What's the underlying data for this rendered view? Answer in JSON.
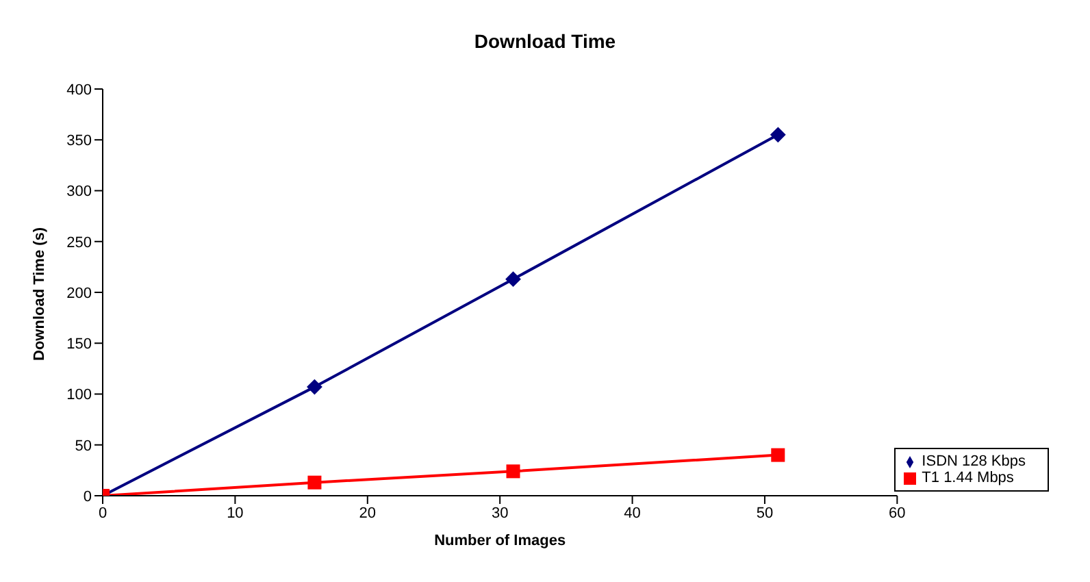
{
  "chart_data": {
    "type": "line",
    "title": "Download Time",
    "xlabel": "Number of Images",
    "ylabel": "Download Time (s)",
    "x": [
      0,
      16,
      31,
      51
    ],
    "series": [
      {
        "name": "ISDN 128 Kbps",
        "color": "#000080",
        "values": [
          0,
          107,
          213,
          355
        ],
        "marker": "diamond"
      },
      {
        "name": "T1 1.44 Mbps",
        "color": "#ff0000",
        "values": [
          0,
          13,
          24,
          40
        ],
        "marker": "square"
      }
    ],
    "xlim": [
      0,
      60
    ],
    "xticks": [
      0,
      10,
      20,
      30,
      40,
      50,
      60
    ],
    "ylim": [
      0,
      400
    ],
    "yticks": [
      0,
      50,
      100,
      150,
      200,
      250,
      300,
      350,
      400
    ],
    "grid": false,
    "legend": "bottom right"
  }
}
